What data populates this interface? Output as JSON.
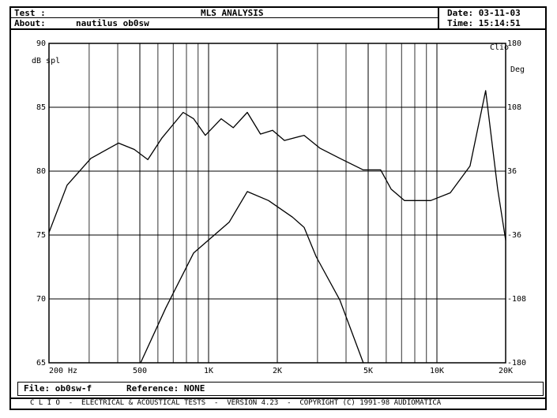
{
  "header": {
    "test": "Test :",
    "title": "MLS ANALYSIS",
    "date": "Date: 03-11-03",
    "about": "About:",
    "about_text": "nautilus ob0sw",
    "time": "Time: 15:14:51"
  },
  "file": {
    "file": "File: ob0sw-f",
    "reference": "Reference: NONE"
  },
  "footer": "C L I O  -  ELECTRICAL & ACOUSTICAL TESTS  -  VERSION 4.23  -  COPYRIGHT (C) 1991-98 AUDIOMATICA",
  "chart_data": {
    "type": "line",
    "y_label": "dB spl",
    "y2_label": "Deg",
    "brand": "Clio",
    "x_unit": "Hz",
    "log_x": true,
    "grid": true,
    "color": "#000000",
    "xlim": [
      200,
      20000
    ],
    "xticks": [
      200,
      500,
      {
        "value": 1000,
        "label": "1K"
      },
      {
        "value": 2000,
        "label": "2K"
      },
      {
        "value": 5000,
        "label": "5K"
      },
      {
        "value": 10000,
        "label": "10K"
      },
      {
        "value": 20000,
        "label": "20K"
      }
    ],
    "xminor": [
      300,
      400,
      600,
      700,
      800,
      900,
      3000,
      4000,
      6000,
      7000,
      8000,
      9000
    ],
    "ylim": [
      65,
      90
    ],
    "yticks": [
      65,
      70,
      75,
      80,
      85,
      90
    ],
    "y2lim": [
      -180,
      180
    ],
    "y2ticks": [
      -180,
      -108,
      -36,
      36,
      108,
      180
    ],
    "series": [
      {
        "x": [
          200,
          240,
          305,
          403,
          473,
          542,
          625,
          774,
          860,
          968,
          1136,
          1282,
          1478,
          1688,
          1906,
          2148,
          2620,
          3070,
          3760,
          4760,
          5670,
          6300,
          7210,
          9390,
          11440,
          13960,
          16350,
          18450,
          20000
        ],
        "values": [
          75.2,
          78.9,
          81.0,
          82.2,
          81.7,
          80.9,
          82.6,
          84.6,
          84.1,
          82.8,
          84.1,
          83.4,
          84.6,
          82.9,
          83.2,
          82.4,
          82.8,
          81.8,
          81.0,
          80.1,
          80.1,
          78.6,
          77.7,
          77.7,
          78.3,
          80.4,
          86.3,
          78.6,
          74.6
        ]
      },
      {
        "x": [
          504,
          650,
          860,
          1230,
          1478,
          1830,
          2330,
          2620,
          2960,
          3760,
          4760
        ],
        "values": [
          65,
          69.3,
          73.6,
          76.0,
          78.4,
          77.7,
          76.4,
          75.6,
          73.3,
          69.9,
          65
        ]
      }
    ]
  }
}
